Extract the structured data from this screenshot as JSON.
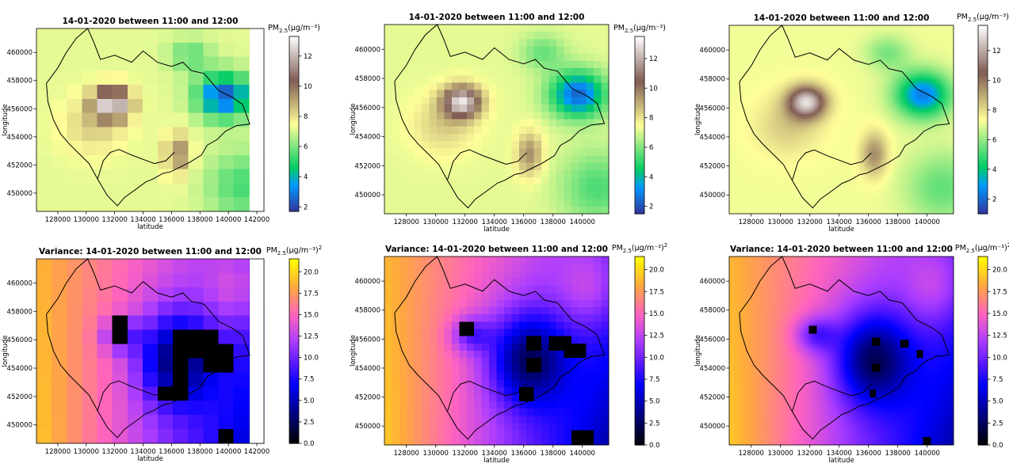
{
  "chart_data": [
    {
      "type": "heatmap",
      "title": "14-01-2020 between 11:00 and 12:00",
      "xlabel": "latitude",
      "ylabel": "longitude",
      "xlim": [
        126500,
        142500
      ],
      "ylim": [
        448700,
        461700
      ],
      "xticks": [
        "128000",
        "130000",
        "132000",
        "134000",
        "136000",
        "138000",
        "140000",
        "142000"
      ],
      "yticks": [
        "450000",
        "452000",
        "454000",
        "456000",
        "458000",
        "460000"
      ],
      "colorbar": {
        "label_main": "PM",
        "label_sub": "2.5",
        "label_unit": "(µg/m⁻³)",
        "range": [
          1.7,
          13.3
        ],
        "ticks": [
          "2",
          "4",
          "6",
          "8",
          "10",
          "12"
        ],
        "colormap": "terrain"
      },
      "resolution": "coarse (~1 km grid)",
      "z_mean": 7.4,
      "z_max": 13,
      "z_min": 2
    },
    {
      "type": "heatmap",
      "title": "14-01-2020 between 11:00 and 12:00",
      "xlabel": "latitude",
      "ylabel": "longitude",
      "xlim": [
        126500,
        141800
      ],
      "ylim": [
        448700,
        461700
      ],
      "xticks": [
        "128000",
        "130000",
        "132000",
        "134000",
        "136000",
        "138000",
        "140000"
      ],
      "yticks": [
        "450000",
        "452000",
        "454000",
        "456000",
        "458000",
        "460000"
      ],
      "colorbar": {
        "label_main": "PM",
        "label_sub": "2.5",
        "label_unit": "(µg/m⁻³)",
        "range": [
          1.5,
          13.5
        ],
        "ticks": [
          "2",
          "4",
          "6",
          "8",
          "10",
          "12"
        ],
        "colormap": "terrain"
      },
      "resolution": "medium (~500 m grid)",
      "z_mean": 7.2,
      "z_max": 13,
      "z_min": 2
    },
    {
      "type": "heatmap",
      "title": "14-01-2020 between 11:00 and 12:00",
      "xlabel": "latitude",
      "ylabel": "longitude",
      "xlim": [
        126500,
        141800
      ],
      "ylim": [
        448700,
        461700
      ],
      "xticks": [
        "128000",
        "130000",
        "132000",
        "134000",
        "136000",
        "138000",
        "140000"
      ],
      "yticks": [
        "450000",
        "452000",
        "454000",
        "456000",
        "458000",
        "460000"
      ],
      "colorbar": {
        "label_main": "PM",
        "label_sub": "2.5",
        "label_unit": "(µg/m⁻³)",
        "range": [
          1.0,
          13.7
        ],
        "ticks": [
          "2",
          "4",
          "6",
          "8",
          "10",
          "12"
        ],
        "colormap": "terrain"
      },
      "resolution": "fine",
      "z_mean": 7.5,
      "z_max": 13,
      "z_min": 1.5
    },
    {
      "type": "heatmap",
      "title": "Variance: 14-01-2020 between 11:00 and 12:00",
      "xlabel": "latitude",
      "ylabel": "longitude",
      "xlim": [
        126500,
        142500
      ],
      "ylim": [
        448700,
        461700
      ],
      "xticks": [
        "128000",
        "130000",
        "132000",
        "134000",
        "136000",
        "138000",
        "140000",
        "142000"
      ],
      "yticks": [
        "450000",
        "452000",
        "454000",
        "456000",
        "458000",
        "460000"
      ],
      "colorbar": {
        "label_main": "PM",
        "label_sub": "2.5",
        "label_unit": "(µg/m⁻³)",
        "label_sup": "2",
        "range": [
          0,
          21.5
        ],
        "ticks": [
          "0.0",
          "2.5",
          "5.0",
          "7.5",
          "10.0",
          "12.5",
          "15.0",
          "17.5",
          "20.0"
        ],
        "colormap": "gnuplot2"
      },
      "resolution": "coarse (~1 km grid)",
      "z_max": 21,
      "z_min": 0
    },
    {
      "type": "heatmap",
      "title": "Variance: 14-01-2020 between 11:00 and 12:00",
      "xlabel": "latitude",
      "ylabel": "longitude",
      "xlim": [
        126500,
        141800
      ],
      "ylim": [
        448700,
        461700
      ],
      "xticks": [
        "128000",
        "130000",
        "132000",
        "134000",
        "136000",
        "138000",
        "140000"
      ],
      "yticks": [
        "450000",
        "452000",
        "454000",
        "456000",
        "458000",
        "460000"
      ],
      "colorbar": {
        "label_main": "PM",
        "label_sub": "2.5",
        "label_unit": "(µg/m⁻³)",
        "label_sup": "2",
        "range": [
          0,
          21.5
        ],
        "ticks": [
          "0.0",
          "2.5",
          "5.0",
          "7.5",
          "10.0",
          "12.5",
          "15.0",
          "17.5",
          "20.0"
        ],
        "colormap": "gnuplot2"
      },
      "resolution": "medium (~500 m grid)",
      "z_max": 21,
      "z_min": 0
    },
    {
      "type": "heatmap",
      "title": "Variance: 14-01-2020 between 11:00 and 12:00",
      "xlabel": "latitude",
      "ylabel": "longitude",
      "xlim": [
        126500,
        141800
      ],
      "ylim": [
        448700,
        461700
      ],
      "xticks": [
        "128000",
        "130000",
        "132000",
        "134000",
        "136000",
        "138000",
        "140000"
      ],
      "yticks": [
        "450000",
        "452000",
        "454000",
        "456000",
        "458000",
        "460000"
      ],
      "colorbar": {
        "label_main": "PM",
        "label_sub": "2.5",
        "label_unit": "(µg/m⁻³)",
        "label_sup": "2",
        "range": [
          0,
          21.5
        ],
        "ticks": [
          "0.0",
          "2.5",
          "5.0",
          "7.5",
          "10.0",
          "12.5",
          "15.0",
          "17.5",
          "20.0"
        ],
        "colormap": "gnuplot2"
      },
      "resolution": "fine",
      "z_max": 21,
      "z_min": 0
    }
  ]
}
